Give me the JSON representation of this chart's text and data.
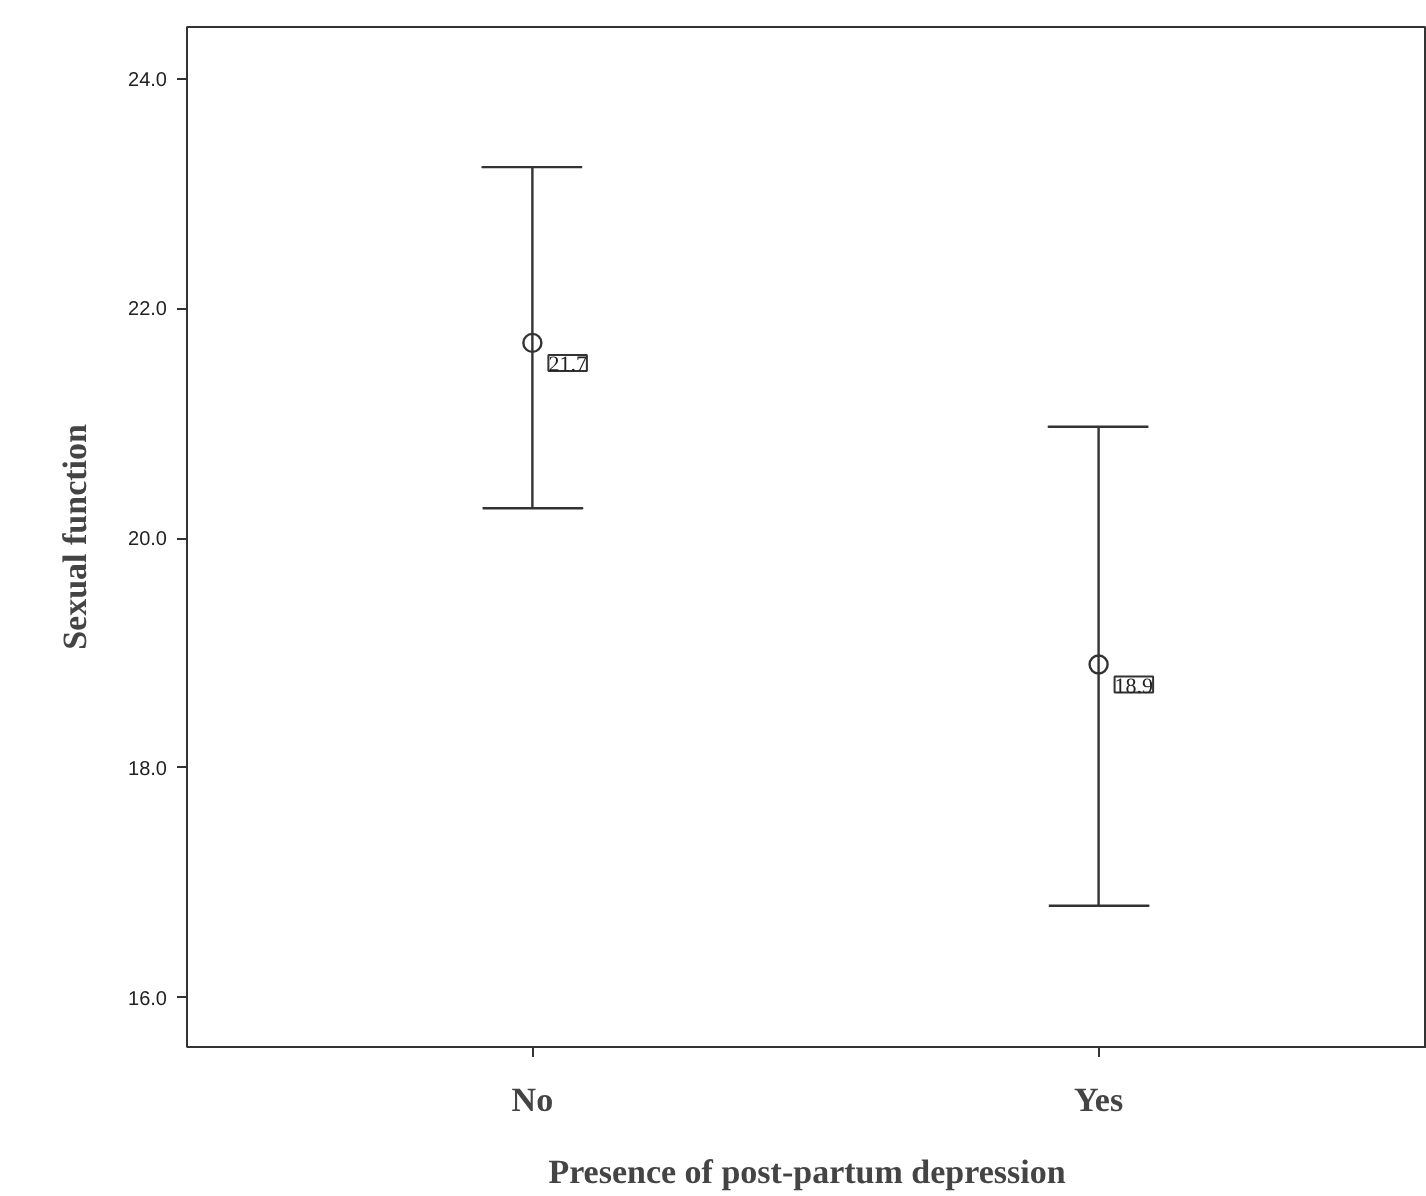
{
  "chart_data": {
    "type": "scatter",
    "xlabel": "Presence of post-partum depression",
    "ylabel": "Sexual function",
    "categories": [
      "No",
      "Yes"
    ],
    "values": [
      21.7,
      18.9
    ],
    "errors": [
      [
        20.26,
        23.23
      ],
      [
        16.8,
        20.97
      ]
    ],
    "color": "#333333",
    "marker": "circle",
    "data_labels": true,
    "grid": false,
    "ylim": [
      15.57,
      24.45
    ],
    "yticks": [
      {
        "value": 16,
        "label": "16.0"
      },
      {
        "value": 18,
        "label": "18.0"
      },
      {
        "value": 20,
        "label": "20.0"
      },
      {
        "value": 22,
        "label": "22.0"
      },
      {
        "value": 24,
        "label": "24.0"
      }
    ]
  }
}
